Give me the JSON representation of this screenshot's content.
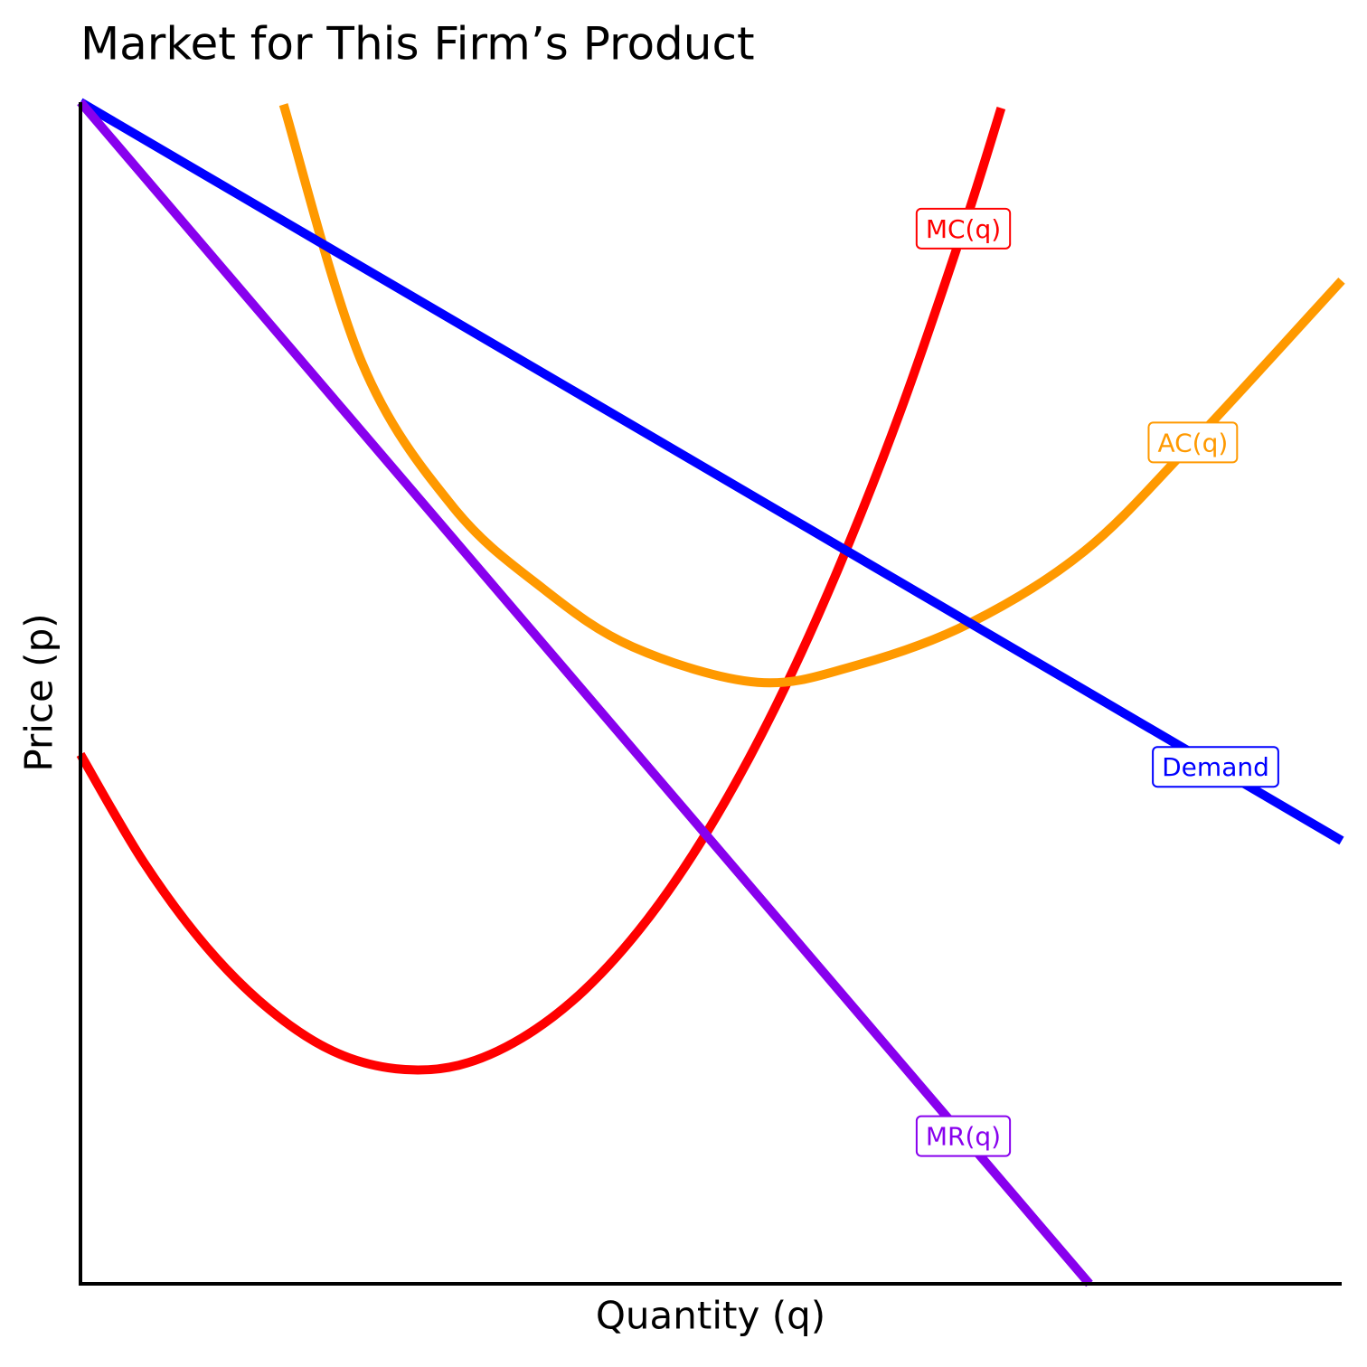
{
  "chart_data": {
    "type": "line",
    "title": "Market for This Firm’s Product",
    "x_label": "Quantity (q)",
    "y_label": "Price (p)",
    "xlim": [
      0,
      10
    ],
    "ylim": [
      0,
      10
    ],
    "series": [
      {
        "name": "MC(q)",
        "color": "#ff0000",
        "x": [
          0,
          0.5,
          1,
          1.5,
          2,
          2.5,
          3,
          3.5,
          4,
          4.5,
          5,
          5.5,
          6,
          6.5,
          7,
          7.3
        ],
        "values": [
          4.48,
          3.57,
          2.85,
          2.32,
          1.97,
          1.82,
          1.85,
          2.08,
          2.49,
          3.09,
          3.88,
          4.86,
          6.03,
          7.38,
          8.93,
          9.95
        ]
      },
      {
        "name": "AC(q)",
        "color": "#ff9900",
        "x": [
          1.61,
          2.23,
          2.95,
          3.66,
          4.38,
          5.37,
          6.17,
          7.05,
          7.96,
          8.82,
          10
        ],
        "values": [
          9.98,
          7.8,
          6.58,
          5.89,
          5.39,
          5.09,
          5.24,
          5.59,
          6.2,
          7.12,
          8.49
        ]
      },
      {
        "name": "Demand",
        "color": "#0000ff",
        "x": [
          0,
          1,
          2,
          3,
          4,
          5,
          6,
          7,
          8,
          9,
          10
        ],
        "values": [
          10,
          9.375,
          8.75,
          8.125,
          7.5,
          6.875,
          6.25,
          5.625,
          5,
          4.375,
          3.75
        ]
      },
      {
        "name": "MR(q)",
        "color": "#8800ee",
        "x": [
          0,
          1,
          2,
          3,
          4,
          5,
          6,
          7,
          8
        ],
        "values": [
          10,
          8.75,
          7.5,
          6.25,
          5,
          3.75,
          2.5,
          1.25,
          0
        ]
      }
    ]
  }
}
